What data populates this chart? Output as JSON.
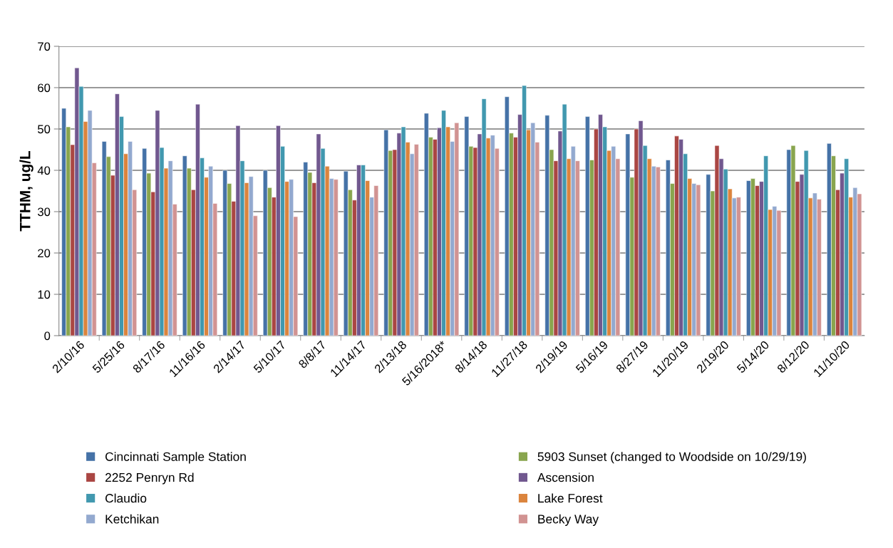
{
  "chart_data": {
    "type": "bar",
    "ylabel": "TTHM, ug/L",
    "categories": [
      "2/10/16",
      "5/25/16",
      "8/17/16",
      "11/16/16",
      "2/14/17",
      "5/10/17",
      "8/8/17",
      "11/14/17",
      "2/13/18",
      "5/16/2018*",
      "8/14/18",
      "11/27/18",
      "2/19/19",
      "5/16/19",
      "8/27/19",
      "11/20/19",
      "2/19/20",
      "5/14/20",
      "8/12/20",
      "11/10/20"
    ],
    "series": [
      {
        "name": "Cincinnati Sample Station",
        "color": "#4572a7",
        "values": [
          55,
          47,
          45.3,
          43.5,
          40,
          40,
          42,
          39.8,
          49.8,
          53.8,
          53,
          57.8,
          53.3,
          53,
          48.8,
          42.5,
          39,
          37.5,
          45,
          46.5
        ]
      },
      {
        "name": "5903 Sunset (changed to Woodside on 10/29/19)",
        "color": "#89a54e",
        "values": [
          50.5,
          43.3,
          39.3,
          40.5,
          36.8,
          35.8,
          39.5,
          35.3,
          44.8,
          48,
          45.8,
          49,
          45,
          42.5,
          38.3,
          36.8,
          35,
          38,
          46,
          43.5
        ]
      },
      {
        "name": "2252 Penryn Rd",
        "color": "#aa4643",
        "values": [
          46.2,
          38.8,
          34.8,
          35.3,
          32.5,
          33.5,
          37,
          32.8,
          45,
          47.5,
          45.5,
          48,
          42.3,
          50,
          50,
          48.3,
          46,
          36.3,
          37.3,
          35.3
        ]
      },
      {
        "name": "Ascension",
        "color": "#71588f",
        "values": [
          64.8,
          58.5,
          54.5,
          56,
          50.8,
          50.8,
          48.8,
          41.3,
          49,
          50.3,
          48.8,
          53.5,
          49.5,
          53.5,
          52,
          47.5,
          42.8,
          37.3,
          39,
          39.3
        ]
      },
      {
        "name": "Claudio",
        "color": "#4198af",
        "values": [
          60.3,
          53,
          45.5,
          43,
          42.3,
          45.8,
          45.3,
          41.3,
          50.5,
          54.5,
          57.3,
          60.5,
          56,
          50.5,
          46,
          44,
          40.3,
          43.5,
          44.8,
          42.8
        ]
      },
      {
        "name": "Lake Forest",
        "color": "#db843d",
        "values": [
          51.8,
          44,
          40.5,
          38.3,
          37,
          37.3,
          41,
          37.5,
          46.8,
          50.5,
          47.8,
          49.8,
          42.8,
          44.8,
          42.8,
          38,
          35.5,
          30.5,
          33.3,
          33.5
        ]
      },
      {
        "name": "Ketchikan",
        "color": "#93a9cf",
        "values": [
          54.5,
          47,
          42.3,
          41,
          38.5,
          37.8,
          38,
          33.5,
          44,
          47,
          48.5,
          51.5,
          45.8,
          45.8,
          41,
          36.8,
          33.3,
          31.3,
          34.5,
          35.8
        ]
      },
      {
        "name": "Becky Way",
        "color": "#d19392",
        "values": [
          41.8,
          35.3,
          31.8,
          32,
          29,
          28.8,
          37.8,
          36.3,
          46.3,
          51.5,
          45.3,
          46.8,
          42.3,
          42.8,
          40.8,
          36.5,
          33.5,
          30.3,
          33,
          34.3
        ]
      }
    ],
    "ylim": [
      0,
      70
    ],
    "yticks": [
      0,
      10,
      20,
      30,
      40,
      50,
      60,
      70
    ],
    "grid": "y",
    "legend": "bottom"
  }
}
